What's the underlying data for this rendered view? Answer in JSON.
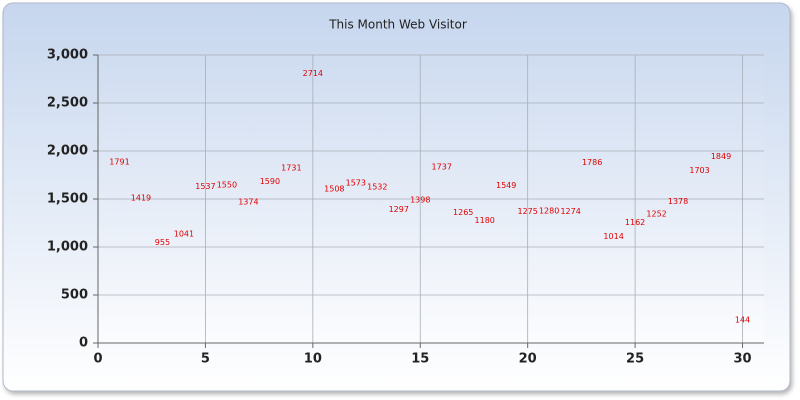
{
  "chart_data": {
    "type": "scatter",
    "title": "This Month Web Visitor",
    "x": [
      1,
      2,
      3,
      4,
      5,
      6,
      7,
      8,
      9,
      10,
      11,
      12,
      13,
      14,
      15,
      16,
      17,
      18,
      19,
      20,
      21,
      22,
      23,
      24,
      25,
      26,
      27,
      28,
      29,
      30
    ],
    "values": [
      1791,
      1419,
      955,
      1041,
      1537,
      1550,
      1374,
      1590,
      1731,
      2714,
      1508,
      1573,
      1532,
      1297,
      1398,
      1737,
      1265,
      1180,
      1549,
      1275,
      1280,
      1274,
      1786,
      1014,
      1162,
      1252,
      1378,
      1703,
      1849,
      144
    ],
    "color": "#e00000",
    "xlim": [
      0,
      31
    ],
    "xticks": [
      0,
      5,
      10,
      15,
      20,
      25,
      30
    ],
    "ylim": [
      0,
      3000
    ],
    "yticks": [
      0,
      {
        "value": 500,
        "label": "500"
      },
      {
        "value": 1000,
        "label": "1,000"
      },
      {
        "value": 1500,
        "label": "1,500"
      },
      {
        "value": 2000,
        "label": "2,000"
      },
      {
        "value": 2500,
        "label": "2,500"
      },
      {
        "value": 3000,
        "label": "3,000"
      }
    ],
    "grid": true
  }
}
